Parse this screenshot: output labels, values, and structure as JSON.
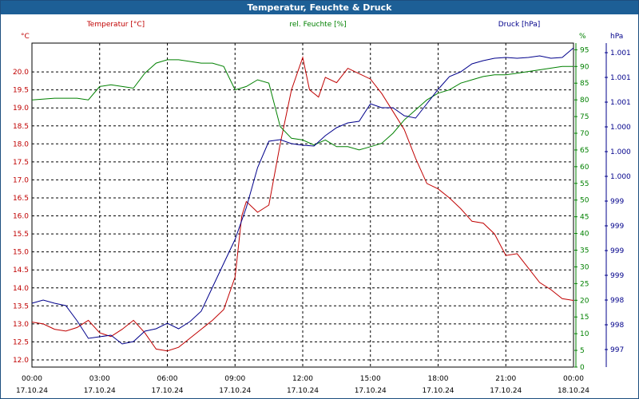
{
  "chart_data": {
    "type": "line",
    "title": "Temperatur, Feuchte & Druck",
    "x_ticks": [
      {
        "time": "00:00",
        "date": "17.10.24"
      },
      {
        "time": "03:00",
        "date": "17.10.24"
      },
      {
        "time": "06:00",
        "date": "17.10.24"
      },
      {
        "time": "09:00",
        "date": "17.10.24"
      },
      {
        "time": "12:00",
        "date": "17.10.24"
      },
      {
        "time": "15:00",
        "date": "17.10.24"
      },
      {
        "time": "18:00",
        "date": "17.10.24"
      },
      {
        "time": "21:00",
        "date": "17.10.24"
      },
      {
        "time": "00:00",
        "date": "18.10.24"
      }
    ],
    "x_range_hours": [
      0,
      24
    ],
    "grid": true,
    "axes": {
      "temperature": {
        "label": "Temperatur [°C]",
        "unit": "°C",
        "color": "#c00000",
        "position": "left",
        "range": [
          11.8,
          20.8
        ],
        "ticks": [
          "12.0",
          "12.5",
          "13.0",
          "13.5",
          "14.0",
          "14.5",
          "15.0",
          "15.5",
          "16.0",
          "16.5",
          "17.0",
          "17.5",
          "18.0",
          "18.5",
          "19.0",
          "19.5",
          "20.0"
        ]
      },
      "humidity": {
        "label": "rel. Feuchte [%]",
        "unit": "%",
        "color": "#008000",
        "position": "inner-right",
        "range": [
          0,
          97
        ],
        "ticks": [
          "0",
          "5",
          "10",
          "15",
          "20",
          "25",
          "30",
          "35",
          "40",
          "45",
          "50",
          "55",
          "60",
          "65",
          "70",
          "75",
          "80",
          "85",
          "90",
          "95"
        ]
      },
      "pressure": {
        "label": "Druck [hPa]",
        "unit": "hPa",
        "color": "#00008b",
        "position": "right",
        "ticks": [
          "997",
          "998",
          "998",
          "999",
          "999",
          "999",
          "999",
          "1.000",
          "1.000",
          "1.000",
          "1.001",
          "1.001",
          "1.001"
        ]
      }
    },
    "series": [
      {
        "name": "Temperatur [°C]",
        "axis": "temperature",
        "color": "#c00000",
        "points": [
          [
            0,
            13.05
          ],
          [
            0.5,
            13.0
          ],
          [
            1,
            12.85
          ],
          [
            1.5,
            12.8
          ],
          [
            2,
            12.9
          ],
          [
            2.5,
            13.1
          ],
          [
            3,
            12.75
          ],
          [
            3.5,
            12.65
          ],
          [
            4,
            12.85
          ],
          [
            4.5,
            13.1
          ],
          [
            5,
            12.75
          ],
          [
            5.5,
            12.3
          ],
          [
            6,
            12.25
          ],
          [
            6.5,
            12.35
          ],
          [
            7,
            12.6
          ],
          [
            7.5,
            12.85
          ],
          [
            8,
            13.1
          ],
          [
            8.5,
            13.4
          ],
          [
            9,
            14.3
          ],
          [
            9.3,
            16.0
          ],
          [
            9.5,
            16.4
          ],
          [
            10,
            16.1
          ],
          [
            10.5,
            16.3
          ],
          [
            11,
            18.0
          ],
          [
            11.5,
            19.5
          ],
          [
            12,
            20.4
          ],
          [
            12.3,
            19.5
          ],
          [
            12.7,
            19.3
          ],
          [
            13,
            19.85
          ],
          [
            13.5,
            19.7
          ],
          [
            14,
            20.1
          ],
          [
            14.5,
            19.95
          ],
          [
            15,
            19.8
          ],
          [
            15.5,
            19.4
          ],
          [
            16,
            18.9
          ],
          [
            16.5,
            18.4
          ],
          [
            17,
            17.6
          ],
          [
            17.5,
            16.9
          ],
          [
            18,
            16.75
          ],
          [
            18.5,
            16.5
          ],
          [
            19,
            16.2
          ],
          [
            19.5,
            15.85
          ],
          [
            20,
            15.8
          ],
          [
            20.5,
            15.5
          ],
          [
            21,
            14.9
          ],
          [
            21.5,
            14.95
          ],
          [
            22,
            14.55
          ],
          [
            22.5,
            14.15
          ],
          [
            23,
            13.95
          ],
          [
            23.5,
            13.7
          ],
          [
            24,
            13.65
          ]
        ]
      },
      {
        "name": "rel. Feuchte [%]",
        "axis": "humidity",
        "color": "#008000",
        "points": [
          [
            0,
            80
          ],
          [
            1,
            80.5
          ],
          [
            2,
            80.5
          ],
          [
            2.5,
            80
          ],
          [
            3,
            84
          ],
          [
            3.5,
            84.5
          ],
          [
            4,
            84
          ],
          [
            4.5,
            83.5
          ],
          [
            5,
            88
          ],
          [
            5.5,
            91
          ],
          [
            6,
            92
          ],
          [
            6.5,
            92
          ],
          [
            7,
            91.5
          ],
          [
            7.5,
            91
          ],
          [
            8,
            91
          ],
          [
            8.5,
            90
          ],
          [
            9,
            83
          ],
          [
            9.5,
            84
          ],
          [
            10,
            86
          ],
          [
            10.5,
            85
          ],
          [
            11,
            72
          ],
          [
            11.5,
            68.5
          ],
          [
            12,
            68
          ],
          [
            12.5,
            66.5
          ],
          [
            13,
            68
          ],
          [
            13.5,
            66
          ],
          [
            14,
            66
          ],
          [
            14.5,
            65
          ],
          [
            15,
            66
          ],
          [
            15.5,
            67
          ],
          [
            16,
            70
          ],
          [
            16.5,
            74
          ],
          [
            17,
            77
          ],
          [
            17.5,
            80
          ],
          [
            18,
            82
          ],
          [
            18.5,
            83
          ],
          [
            19,
            85
          ],
          [
            19.5,
            86
          ],
          [
            20,
            87
          ],
          [
            20.5,
            87.5
          ],
          [
            21,
            87.5
          ],
          [
            21.5,
            88
          ],
          [
            22,
            88.5
          ],
          [
            22.5,
            89
          ],
          [
            23,
            89.5
          ],
          [
            23.5,
            90
          ],
          [
            24,
            90
          ]
        ]
      },
      {
        "name": "Druck [hPa]",
        "axis": "pressure",
        "color": "#00008b",
        "points": [
          [
            0,
            380
          ],
          [
            0.5,
            376
          ],
          [
            1,
            380
          ],
          [
            1.5,
            383
          ],
          [
            2,
            402
          ],
          [
            2.5,
            424
          ],
          [
            3,
            422
          ],
          [
            3.5,
            420
          ],
          [
            4,
            431
          ],
          [
            4.5,
            428
          ],
          [
            5,
            415
          ],
          [
            5.5,
            412
          ],
          [
            6,
            405
          ],
          [
            6.5,
            412
          ],
          [
            7,
            403
          ],
          [
            7.5,
            390
          ],
          [
            8,
            360
          ],
          [
            8.5,
            330
          ],
          [
            9,
            300
          ],
          [
            9.5,
            260
          ],
          [
            10,
            210
          ],
          [
            10.5,
            177
          ],
          [
            11,
            175
          ],
          [
            11.5,
            180
          ],
          [
            12,
            182
          ],
          [
            12.5,
            183
          ],
          [
            13,
            170
          ],
          [
            13.5,
            160
          ],
          [
            14,
            154
          ],
          [
            14.5,
            152
          ],
          [
            15,
            130
          ],
          [
            15.5,
            135
          ],
          [
            16,
            135
          ],
          [
            16.5,
            145
          ],
          [
            17,
            148
          ],
          [
            17.5,
            130
          ],
          [
            18,
            112
          ],
          [
            18.5,
            96
          ],
          [
            19,
            90
          ],
          [
            19.5,
            80
          ],
          [
            20,
            76
          ],
          [
            20.5,
            73
          ],
          [
            21,
            72
          ],
          [
            21.5,
            73
          ],
          [
            22,
            72
          ],
          [
            22.5,
            70
          ],
          [
            23,
            73
          ],
          [
            23.5,
            72
          ],
          [
            24,
            60
          ]
        ]
      }
    ]
  }
}
